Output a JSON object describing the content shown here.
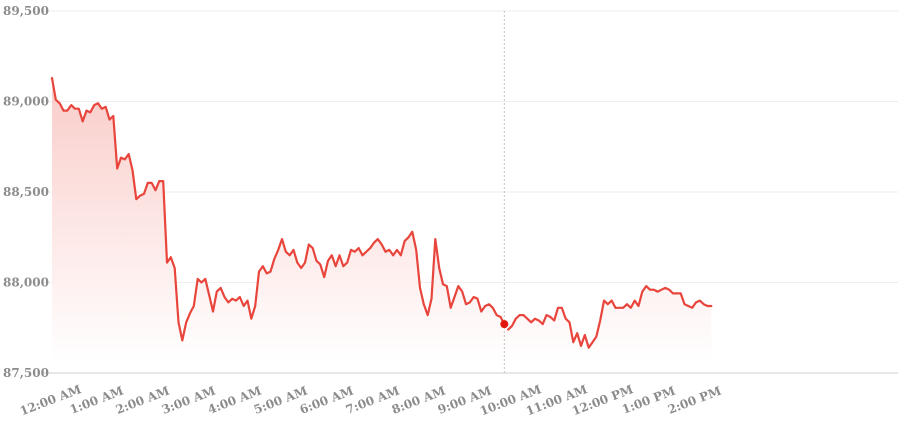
{
  "colors": {
    "line": "#e8453c",
    "area_top": "#f9c9c5",
    "area_bottom": "#ffffff",
    "marker": "#e3160b"
  },
  "chart_data": {
    "type": "area",
    "title": "",
    "xlabel": "",
    "ylabel": "",
    "ylim": [
      87500,
      89500
    ],
    "yticks": [
      87500,
      88000,
      88500,
      89000,
      89500
    ],
    "ytick_labels": [
      "87,500",
      "88,000",
      "88,500",
      "89,000",
      "89,500"
    ],
    "xticks": [
      0,
      60,
      120,
      180,
      240,
      300,
      360,
      420,
      480,
      540,
      600,
      660,
      720,
      780,
      840
    ],
    "xtick_labels": [
      "12:00 AM",
      "1:00 AM",
      "2:00 AM",
      "3:00 AM",
      "4:00 AM",
      "5:00 AM",
      "6:00 AM",
      "7:00 AM",
      "8:00 AM",
      "9:00 AM",
      "10:00 AM",
      "11:00 AM",
      "12:00 PM",
      "1:00 PM",
      "2:00 PM"
    ],
    "xlim": [
      0,
      1140
    ],
    "grid": true,
    "highlight_minute": 590,
    "series": [
      {
        "x": [
          0,
          5,
          10,
          15,
          20,
          25,
          30,
          35,
          40,
          45,
          50,
          55,
          60,
          65,
          70,
          75,
          80,
          85,
          90,
          95,
          100,
          105,
          110,
          115,
          120,
          125,
          130,
          135,
          140,
          145,
          150,
          155,
          160,
          165,
          170,
          175,
          180,
          185,
          190,
          195,
          200,
          205,
          210,
          215,
          220,
          225,
          230,
          235,
          240,
          245,
          250,
          255,
          260,
          265,
          270,
          275,
          280,
          285,
          290,
          295,
          300,
          305,
          310,
          315,
          320,
          325,
          330,
          335,
          340,
          345,
          350,
          355,
          360,
          365,
          370,
          375,
          380,
          385,
          390,
          395,
          400,
          405,
          410,
          415,
          420,
          425,
          430,
          435,
          440,
          445,
          450,
          455,
          460,
          465,
          470,
          475,
          480,
          485,
          490,
          495,
          500,
          505,
          510,
          515,
          520,
          525,
          530,
          535,
          540,
          545,
          550,
          555,
          560,
          565,
          570,
          575,
          580,
          585,
          590
        ],
        "values": [
          89130,
          89010,
          88990,
          88950,
          88950,
          88980,
          88960,
          88960,
          88890,
          88950,
          88940,
          88980,
          88990,
          88960,
          88970,
          88900,
          88920,
          88630,
          88690,
          88680,
          88710,
          88620,
          88460,
          88480,
          88490,
          88550,
          88550,
          88510,
          88560,
          88560,
          88110,
          88140,
          88080,
          87780,
          87680,
          87780,
          87830,
          87870,
          88020,
          88000,
          88020,
          87930,
          87840,
          87950,
          87970,
          87920,
          87890,
          87910,
          87900,
          87920,
          87870,
          87900,
          87800,
          87870,
          88060,
          88090,
          88050,
          88060,
          88130,
          88180,
          88240,
          88170,
          88150,
          88180,
          88110,
          88080,
          88110,
          88210,
          88190,
          88120,
          88100,
          88030,
          88120,
          88150,
          88090,
          88150,
          88090,
          88110,
          88180,
          88170,
          88190,
          88150,
          88170,
          88190,
          88220,
          88240,
          88210,
          88170,
          88180,
          88150,
          88180,
          88150,
          88230,
          88250,
          88280,
          88180,
          87970,
          87880,
          87820,
          87910,
          88240,
          88080,
          87990,
          87980,
          87860,
          87920,
          87980,
          87950,
          87880,
          87890,
          87920,
          87910,
          87840,
          87870,
          87880,
          87860,
          87820,
          87810,
          87770
        ]
      },
      {
        "x": [
          595,
          600,
          605,
          610,
          615,
          620,
          625,
          630,
          635,
          640,
          645,
          650,
          655,
          660,
          665,
          670,
          675,
          680,
          685,
          690,
          695,
          700,
          705,
          710,
          715,
          720,
          725,
          730,
          735,
          740,
          745,
          750,
          755,
          760,
          765,
          770,
          775,
          780,
          785,
          790,
          795,
          800,
          805,
          810,
          815,
          820,
          825,
          830,
          835,
          840,
          845,
          850,
          855,
          860
        ],
        "values": [
          87740,
          87760,
          87800,
          87820,
          87820,
          87800,
          87780,
          87800,
          87790,
          87770,
          87820,
          87810,
          87790,
          87860,
          87860,
          87800,
          87780,
          87670,
          87720,
          87650,
          87710,
          87640,
          87670,
          87700,
          87790,
          87900,
          87880,
          87900,
          87860,
          87860,
          87860,
          87880,
          87860,
          87900,
          87870,
          87950,
          87980,
          87960,
          87960,
          87950,
          87960,
          87970,
          87960,
          87940,
          87940,
          87940,
          87880,
          87870,
          87860,
          87890,
          87900,
          87880,
          87870,
          87870
        ]
      }
    ]
  }
}
